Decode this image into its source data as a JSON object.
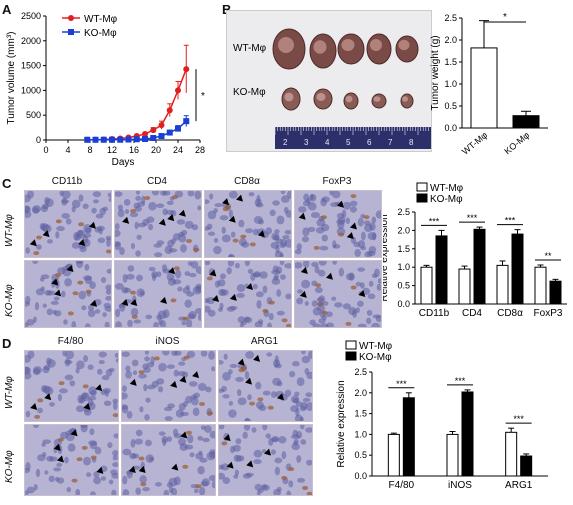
{
  "panels": {
    "A": "A",
    "B": "B",
    "C": "C",
    "D": "D"
  },
  "colors": {
    "wt": "#e02020",
    "ko": "#1a3fd6",
    "tissue_bg": "#b7b4d3",
    "tissue_dark": "#5d5fa0",
    "stain": "#9a5a30"
  },
  "chart_data": [
    {
      "id": "A",
      "type": "line",
      "xlabel": "Days",
      "ylabel": "Tumor volume (mm³)",
      "xticks": [
        "0",
        "4",
        "8",
        "12",
        "16",
        "20",
        "24",
        "28"
      ],
      "yticks": [
        "0",
        "500",
        "1000",
        "1500",
        "2000",
        "2500"
      ],
      "xlim": [
        0,
        28
      ],
      "ylim": [
        0,
        2500
      ],
      "significance": "*",
      "series": [
        {
          "name": "WT-Mφ",
          "x": [
            7.5,
            9,
            10.5,
            12,
            13.5,
            15,
            16.5,
            18,
            19.5,
            21,
            22.5,
            24,
            25.5
          ],
          "values": [
            5,
            5,
            10,
            20,
            30,
            50,
            80,
            120,
            200,
            300,
            600,
            1000,
            1430
          ],
          "err": [
            3,
            3,
            4,
            5,
            8,
            10,
            20,
            30,
            50,
            80,
            130,
            180,
            480
          ]
        },
        {
          "name": "KO-Mφ",
          "x": [
            7.5,
            9,
            10.5,
            12,
            13.5,
            15,
            16.5,
            18,
            19.5,
            21,
            22.5,
            24,
            25.5
          ],
          "values": [
            5,
            5,
            5,
            5,
            5,
            10,
            15,
            20,
            40,
            80,
            150,
            230,
            380
          ],
          "err": [
            2,
            2,
            2,
            2,
            3,
            4,
            5,
            8,
            15,
            25,
            40,
            60,
            110
          ]
        }
      ]
    },
    {
      "id": "B",
      "type": "bar",
      "ylabel": "Tumor weight (g)",
      "categories": [
        "WT-Mφ",
        "KO-Mφ"
      ],
      "values": [
        1.82,
        0.28
      ],
      "err": [
        0.62,
        0.1
      ],
      "yticks": [
        "0.0",
        "0.5",
        "1.0",
        "1.5",
        "2.0",
        "2.5"
      ],
      "ylim": [
        0,
        2.5
      ],
      "significance": "*"
    },
    {
      "id": "C",
      "type": "bar",
      "ylabel": "Relative expression",
      "categories": [
        "CD11b",
        "CD4",
        "CD8α",
        "FoxP3"
      ],
      "series": [
        {
          "name": "WT-Mφ",
          "values": [
            1.0,
            0.95,
            1.05,
            1.0
          ],
          "err": [
            0.05,
            0.08,
            0.12,
            0.06
          ]
        },
        {
          "name": "KO-Mφ",
          "values": [
            1.85,
            2.03,
            1.9,
            0.62
          ],
          "err": [
            0.15,
            0.06,
            0.12,
            0.05
          ]
        }
      ],
      "significance": [
        "***",
        "***",
        "***",
        "**"
      ],
      "yticks": [
        "0.0",
        "0.5",
        "1.0",
        "1.5",
        "2.0",
        "2.5"
      ],
      "ylim": [
        0,
        2.5
      ]
    },
    {
      "id": "D",
      "type": "bar",
      "ylabel": "Relative expression",
      "categories": [
        "F4/80",
        "iNOS",
        "ARG1"
      ],
      "series": [
        {
          "name": "WT-Mφ",
          "values": [
            1.0,
            1.0,
            1.05
          ],
          "err": [
            0.03,
            0.07,
            0.1
          ]
        },
        {
          "name": "KO-Mφ",
          "values": [
            1.88,
            2.02,
            0.48
          ],
          "err": [
            0.12,
            0.05,
            0.05
          ]
        }
      ],
      "significance": [
        "***",
        "***",
        "***"
      ],
      "yticks": [
        "0.0",
        "0.5",
        "1.0",
        "1.5",
        "2.0",
        "2.5"
      ],
      "ylim": [
        0,
        2.5
      ]
    }
  ],
  "photo_B": {
    "row_labels": [
      "WT-Mφ",
      "KO-Mφ"
    ],
    "ruler_numbers": [
      "2",
      "3",
      "4",
      "5",
      "6",
      "7",
      "8"
    ],
    "wt_count": 5,
    "ko_count": 5
  },
  "ihc_C": {
    "columns": [
      "CD11b",
      "CD4",
      "CD8α",
      "FoxP3"
    ],
    "rows": [
      "WT-Mφ",
      "KO-Mφ"
    ]
  },
  "ihc_D": {
    "columns": [
      "F4/80",
      "iNOS",
      "ARG1"
    ],
    "rows": [
      "WT-Mφ",
      "KO-Mφ"
    ]
  }
}
